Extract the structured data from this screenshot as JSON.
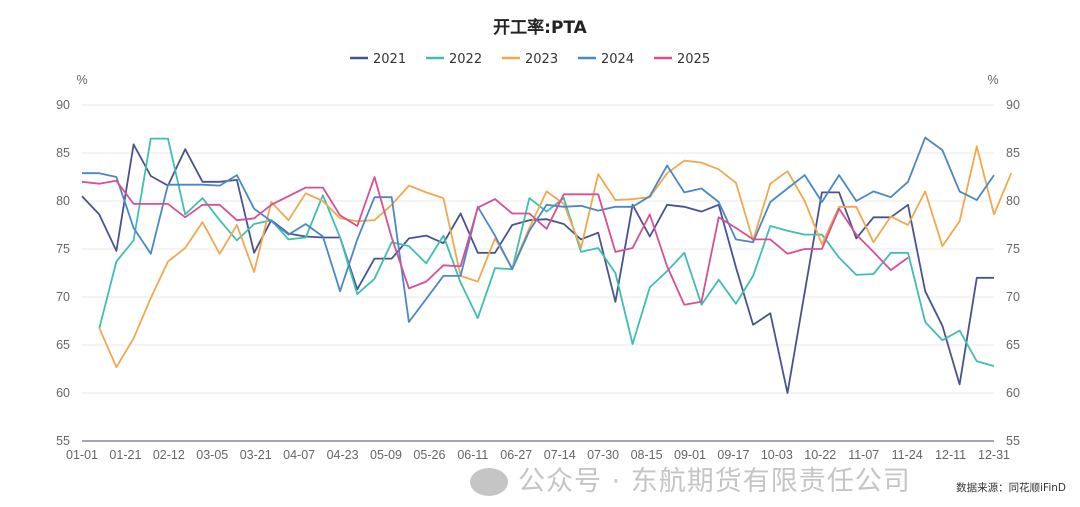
{
  "chart_data": {
    "type": "line",
    "title": "开工率:PTA",
    "ylabel_left": "%",
    "ylabel_right": "%",
    "ylim": [
      55,
      90
    ],
    "yticks": [
      55,
      60,
      65,
      70,
      75,
      80,
      85,
      90
    ],
    "grid": true,
    "legend_position": "top-center",
    "x_tick_labels": [
      "01-01",
      "01-21",
      "02-12",
      "03-05",
      "03-21",
      "04-07",
      "04-23",
      "05-09",
      "05-26",
      "06-11",
      "06-27",
      "07-14",
      "07-30",
      "08-15",
      "09-01",
      "09-17",
      "10-03",
      "10-22",
      "11-07",
      "11-24",
      "12-11",
      "12-31"
    ],
    "x_weeks": 52,
    "series": [
      {
        "name": "2021",
        "color": "#4a5391",
        "start": 0,
        "values": [
          80.5,
          78.6,
          74.8,
          85.9,
          82.6,
          81.6,
          85.4,
          82.0,
          82.0,
          82.2,
          74.6,
          78.0,
          76.6,
          76.3,
          76.2,
          76.2,
          70.8,
          74.0,
          74.0,
          76.1,
          76.4,
          75.6,
          78.7,
          74.6,
          74.6,
          77.5,
          78.0,
          78.1,
          77.6,
          76.0,
          76.7,
          69.5,
          79.6,
          76.3,
          79.6,
          79.4,
          78.9,
          79.6,
          73.1,
          67.1,
          68.3,
          60.0,
          70.5,
          80.9,
          80.9,
          76.1,
          78.3,
          78.3,
          79.6,
          70.6,
          67.0,
          60.9,
          72.0,
          72.0
        ]
      },
      {
        "name": "2022",
        "color": "#3fbfb0",
        "start": 1,
        "values": [
          66.7,
          73.7,
          75.9,
          86.5,
          86.5,
          78.6,
          80.3,
          78.0,
          75.9,
          77.6,
          78.0,
          76.0,
          76.2,
          80.6,
          76.2,
          70.3,
          71.9,
          75.7,
          75.3,
          73.5,
          76.4,
          71.5,
          67.8,
          73.0,
          72.9,
          80.3,
          78.9,
          80.3,
          74.7,
          75.1,
          72.5,
          65.1,
          71.0,
          72.7,
          74.6,
          69.2,
          71.8,
          69.3,
          72.2,
          77.4,
          76.9,
          76.5,
          76.5,
          74.1,
          72.3,
          72.4,
          74.6,
          74.6,
          67.4,
          65.5,
          66.5,
          63.3,
          62.8
        ]
      },
      {
        "name": "2023",
        "color": "#f0a94e",
        "start": 1,
        "values": [
          66.8,
          62.7,
          65.7,
          69.9,
          73.7,
          75.1,
          77.8,
          74.5,
          77.5,
          72.6,
          79.9,
          78.0,
          80.8,
          80.0,
          78.2,
          77.9,
          78.0,
          79.6,
          81.6,
          80.9,
          80.3,
          72.2,
          71.6,
          76.1,
          73.0,
          77.2,
          81.0,
          79.7,
          75.1,
          82.8,
          80.1,
          80.2,
          80.4,
          82.9,
          84.2,
          84.0,
          83.3,
          81.9,
          75.9,
          81.8,
          83.1,
          80.0,
          75.5,
          79.4,
          79.4,
          75.7,
          78.4,
          77.5,
          81.0,
          75.3,
          77.9,
          85.7,
          78.6,
          82.9
        ]
      },
      {
        "name": "2024",
        "color": "#4a88c7",
        "start": 0,
        "values": [
          82.9,
          82.9,
          82.5,
          77.2,
          74.5,
          81.7,
          81.7,
          81.7,
          81.6,
          82.7,
          79.2,
          77.9,
          76.5,
          77.6,
          76.3,
          70.6,
          76.0,
          80.4,
          80.4,
          67.4,
          69.8,
          72.2,
          72.2,
          79.4,
          76.4,
          72.9,
          76.9,
          79.6,
          79.4,
          79.5,
          79.0,
          79.4,
          79.4,
          80.5,
          83.7,
          80.9,
          81.3,
          79.9,
          76.0,
          75.7,
          79.9,
          81.3,
          82.7,
          79.9,
          82.7,
          80.0,
          81.0,
          80.4,
          82.0,
          86.6,
          85.3,
          81.0,
          80.1,
          82.7
        ]
      },
      {
        "name": "2025",
        "color": "#d94f94",
        "start": 0,
        "values": [
          82.0,
          81.8,
          82.1,
          79.7,
          79.7,
          79.7,
          78.3,
          79.6,
          79.6,
          78.0,
          78.2,
          79.6,
          80.5,
          81.4,
          81.4,
          78.5,
          77.4,
          82.5,
          76.2,
          70.9,
          71.6,
          73.3,
          73.2,
          79.3,
          80.2,
          78.7,
          78.7,
          77.1,
          80.7,
          80.7,
          80.7,
          74.7,
          75.1,
          78.6,
          73.2,
          69.2,
          69.5,
          78.3,
          77.2,
          76.0,
          76.0,
          74.5,
          75.0,
          75.0,
          79.2,
          76.5,
          74.7,
          72.8,
          74.1
        ]
      }
    ]
  },
  "source": "数据来源：同花顺iFinD",
  "watermark": "公众号 · 东航期货有限责任公司"
}
